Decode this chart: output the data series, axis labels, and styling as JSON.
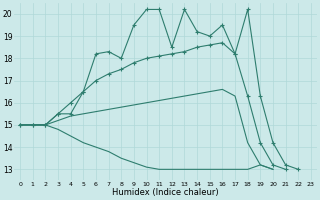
{
  "xlabel": "Humidex (Indice chaleur)",
  "xlim": [
    -0.5,
    23.5
  ],
  "ylim": [
    12.5,
    20.5
  ],
  "yticks": [
    13,
    14,
    15,
    16,
    17,
    18,
    19,
    20
  ],
  "xticks": [
    0,
    1,
    2,
    3,
    4,
    5,
    6,
    7,
    8,
    9,
    10,
    11,
    12,
    13,
    14,
    15,
    16,
    17,
    18,
    19,
    20,
    21,
    22,
    23
  ],
  "bg_color": "#cce9e9",
  "line_color": "#2e7d6e",
  "grid_color": "#b0d8d8",
  "line1": [
    15.0,
    15.0,
    15.0,
    15.5,
    15.5,
    16.5,
    18.2,
    18.3,
    18.0,
    19.5,
    20.2,
    20.2,
    18.5,
    20.2,
    19.2,
    19.0,
    19.5,
    18.2,
    20.2,
    16.3,
    14.2,
    13.2,
    13.0
  ],
  "line1_x": [
    0,
    1,
    2,
    3,
    4,
    5,
    6,
    7,
    8,
    9,
    10,
    11,
    12,
    13,
    14,
    15,
    16,
    17,
    18,
    19,
    20,
    21,
    22
  ],
  "line2": [
    15.0,
    15.0,
    15.0,
    15.5,
    16.0,
    16.5,
    17.0,
    17.3,
    17.5,
    17.8,
    18.0,
    18.1,
    18.2,
    18.3,
    18.5,
    18.6,
    18.7,
    18.2,
    16.3,
    14.2,
    13.2,
    13.0
  ],
  "line2_x": [
    0,
    1,
    2,
    3,
    4,
    5,
    6,
    7,
    8,
    9,
    10,
    11,
    12,
    13,
    14,
    15,
    16,
    17,
    18,
    19,
    20,
    21
  ],
  "line3": [
    15.0,
    15.0,
    15.0,
    15.2,
    15.4,
    15.5,
    15.6,
    15.7,
    15.8,
    15.9,
    16.0,
    16.1,
    16.2,
    16.3,
    16.4,
    16.5,
    16.6,
    16.3,
    14.2,
    13.2,
    13.0
  ],
  "line3_x": [
    0,
    1,
    2,
    3,
    4,
    5,
    6,
    7,
    8,
    9,
    10,
    11,
    12,
    13,
    14,
    15,
    16,
    17,
    18,
    19,
    20
  ],
  "line4": [
    15.0,
    15.0,
    15.0,
    14.8,
    14.5,
    14.2,
    14.0,
    13.8,
    13.5,
    13.3,
    13.1,
    13.0,
    13.0,
    13.0,
    13.0,
    13.0,
    13.0,
    13.0,
    13.0,
    13.2,
    13.0
  ],
  "line4_x": [
    0,
    1,
    2,
    3,
    4,
    5,
    6,
    7,
    8,
    9,
    10,
    11,
    12,
    13,
    14,
    15,
    16,
    17,
    18,
    19,
    20
  ]
}
